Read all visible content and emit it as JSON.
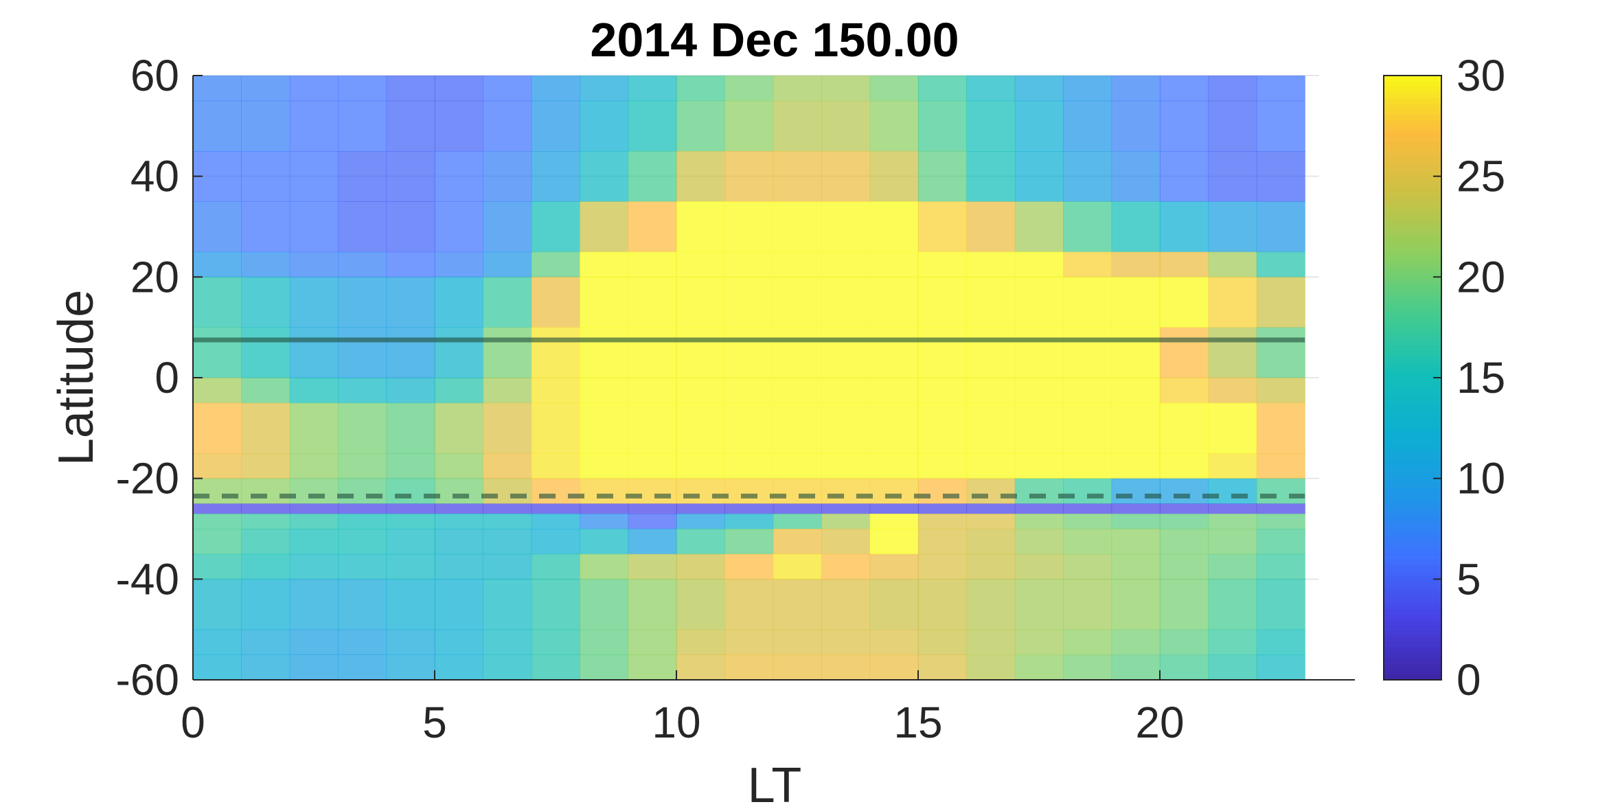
{
  "chart_data": {
    "type": "heatmap",
    "title": "2014 Dec   150.00",
    "xlabel": "LT",
    "ylabel": "Latitude",
    "xlim": [
      0,
      24
    ],
    "ylim": [
      -60,
      60
    ],
    "x_ticks": [
      "0",
      "5",
      "10",
      "15",
      "20"
    ],
    "y_ticks": [
      "60",
      "40",
      "20",
      "0",
      "-20",
      "-40",
      "-60"
    ],
    "colorbar": {
      "clim": [
        0,
        30
      ],
      "ticks": [
        "30",
        "25",
        "20",
        "15",
        "10",
        "5",
        "0"
      ],
      "colormap": "parula"
    },
    "grid": true,
    "lt_bins": [
      0,
      1,
      2,
      3,
      4,
      5,
      6,
      7,
      8,
      9,
      10,
      11,
      12,
      13,
      14,
      15,
      16,
      17,
      18,
      19,
      20,
      21,
      22
    ],
    "lat_bands": [
      {
        "lat": [
          55,
          60
        ],
        "values": [
          7,
          7,
          6,
          6,
          5,
          5,
          6,
          9,
          11,
          14,
          18,
          20,
          22,
          22,
          20,
          17,
          14,
          11,
          9,
          7,
          6,
          5,
          6
        ]
      },
      {
        "lat": [
          45,
          55
        ],
        "values": [
          7,
          7,
          6,
          6,
          5,
          5,
          6,
          9,
          12,
          15,
          19,
          21,
          23,
          23,
          21,
          18,
          15,
          12,
          9,
          7,
          6,
          5,
          6
        ]
      },
      {
        "lat": [
          35,
          45
        ],
        "values": [
          6,
          6,
          6,
          5,
          5,
          6,
          7,
          10,
          14,
          18,
          24,
          26,
          26,
          26,
          24,
          19,
          15,
          12,
          10,
          8,
          6,
          5,
          5
        ]
      },
      {
        "lat": [
          25,
          35
        ],
        "values": [
          7,
          6,
          6,
          5,
          5,
          6,
          8,
          15,
          24,
          27,
          30,
          30,
          30,
          30,
          30,
          28,
          26,
          22,
          18,
          15,
          12,
          10,
          9
        ]
      },
      {
        "lat": [
          20,
          25
        ],
        "values": [
          9,
          8,
          7,
          7,
          6,
          7,
          9,
          19,
          30,
          30,
          30,
          30,
          30,
          30,
          30,
          30,
          30,
          30,
          28,
          26,
          26,
          22,
          16
        ]
      },
      {
        "lat": [
          10,
          20
        ],
        "values": [
          16,
          14,
          11,
          10,
          10,
          12,
          17,
          26,
          30,
          30,
          30,
          30,
          30,
          30,
          30,
          30,
          30,
          30,
          30,
          30,
          30,
          28,
          24
        ]
      },
      {
        "lat": [
          0,
          10
        ],
        "values": [
          17,
          15,
          11,
          10,
          10,
          13,
          20,
          29,
          30,
          30,
          30,
          30,
          30,
          30,
          30,
          30,
          30,
          30,
          30,
          30,
          27,
          23,
          19
        ]
      },
      {
        "lat": [
          -5,
          0
        ],
        "values": [
          22,
          19,
          15,
          14,
          13,
          16,
          22,
          29,
          30,
          30,
          30,
          30,
          30,
          30,
          30,
          30,
          30,
          30,
          30,
          30,
          28,
          26,
          24
        ]
      },
      {
        "lat": [
          -15,
          -5
        ],
        "values": [
          27,
          25,
          21,
          20,
          19,
          22,
          25,
          29,
          30,
          30,
          30,
          30,
          30,
          30,
          30,
          30,
          30,
          30,
          30,
          30,
          30,
          30,
          27
        ]
      },
      {
        "lat": [
          -20,
          -15
        ],
        "values": [
          26,
          25,
          21,
          20,
          19,
          21,
          26,
          29,
          30,
          30,
          30,
          30,
          30,
          30,
          30,
          30,
          30,
          30,
          30,
          30,
          30,
          29,
          27
        ]
      },
      {
        "lat": [
          -25,
          -20
        ],
        "values": [
          21,
          21,
          20,
          19,
          18,
          20,
          24,
          27,
          28,
          28,
          28,
          28,
          28,
          28,
          28,
          27,
          25,
          18,
          17,
          10,
          10,
          12,
          18
        ]
      },
      {
        "lat": [
          -27,
          -25
        ],
        "values": [
          3,
          3,
          3,
          3,
          3,
          3,
          3,
          3,
          3,
          3,
          3,
          3,
          3,
          3,
          3,
          3,
          3,
          3,
          3,
          3,
          3,
          3,
          3
        ]
      },
      {
        "lat": [
          -30,
          -27
        ],
        "values": [
          18,
          17,
          16,
          15,
          15,
          14,
          14,
          12,
          8,
          5,
          10,
          13,
          18,
          22,
          30,
          25,
          25,
          21,
          20,
          19,
          19,
          20,
          19
        ]
      },
      {
        "lat": [
          -35,
          -30
        ],
        "values": [
          18,
          16,
          15,
          15,
          14,
          13,
          13,
          12,
          14,
          10,
          17,
          19,
          26,
          25,
          30,
          25,
          24,
          22,
          21,
          21,
          20,
          20,
          18
        ]
      },
      {
        "lat": [
          -40,
          -35
        ],
        "values": [
          16,
          15,
          14,
          14,
          14,
          13,
          13,
          16,
          21,
          23,
          24,
          27,
          29,
          27,
          26,
          25,
          24,
          23,
          22,
          21,
          20,
          19,
          17
        ]
      },
      {
        "lat": [
          -50,
          -40
        ],
        "values": [
          13,
          12,
          11,
          11,
          12,
          12,
          14,
          16,
          19,
          21,
          23,
          25,
          25,
          25,
          24,
          24,
          23,
          22,
          22,
          21,
          20,
          18,
          16
        ]
      },
      {
        "lat": [
          -55,
          -50
        ],
        "values": [
          12,
          11,
          10,
          10,
          11,
          12,
          14,
          16,
          19,
          21,
          24,
          25,
          25,
          25,
          25,
          24,
          23,
          22,
          21,
          20,
          19,
          17,
          15
        ]
      },
      {
        "lat": [
          -60,
          -55
        ],
        "values": [
          12,
          11,
          10,
          10,
          11,
          12,
          14,
          16,
          19,
          21,
          25,
          26,
          26,
          26,
          26,
          25,
          23,
          21,
          20,
          19,
          18,
          16,
          14
        ]
      }
    ],
    "reference_lines": [
      {
        "lat": 7.5,
        "style": "solid"
      },
      {
        "lat": -23.5,
        "style": "dashed"
      }
    ]
  }
}
